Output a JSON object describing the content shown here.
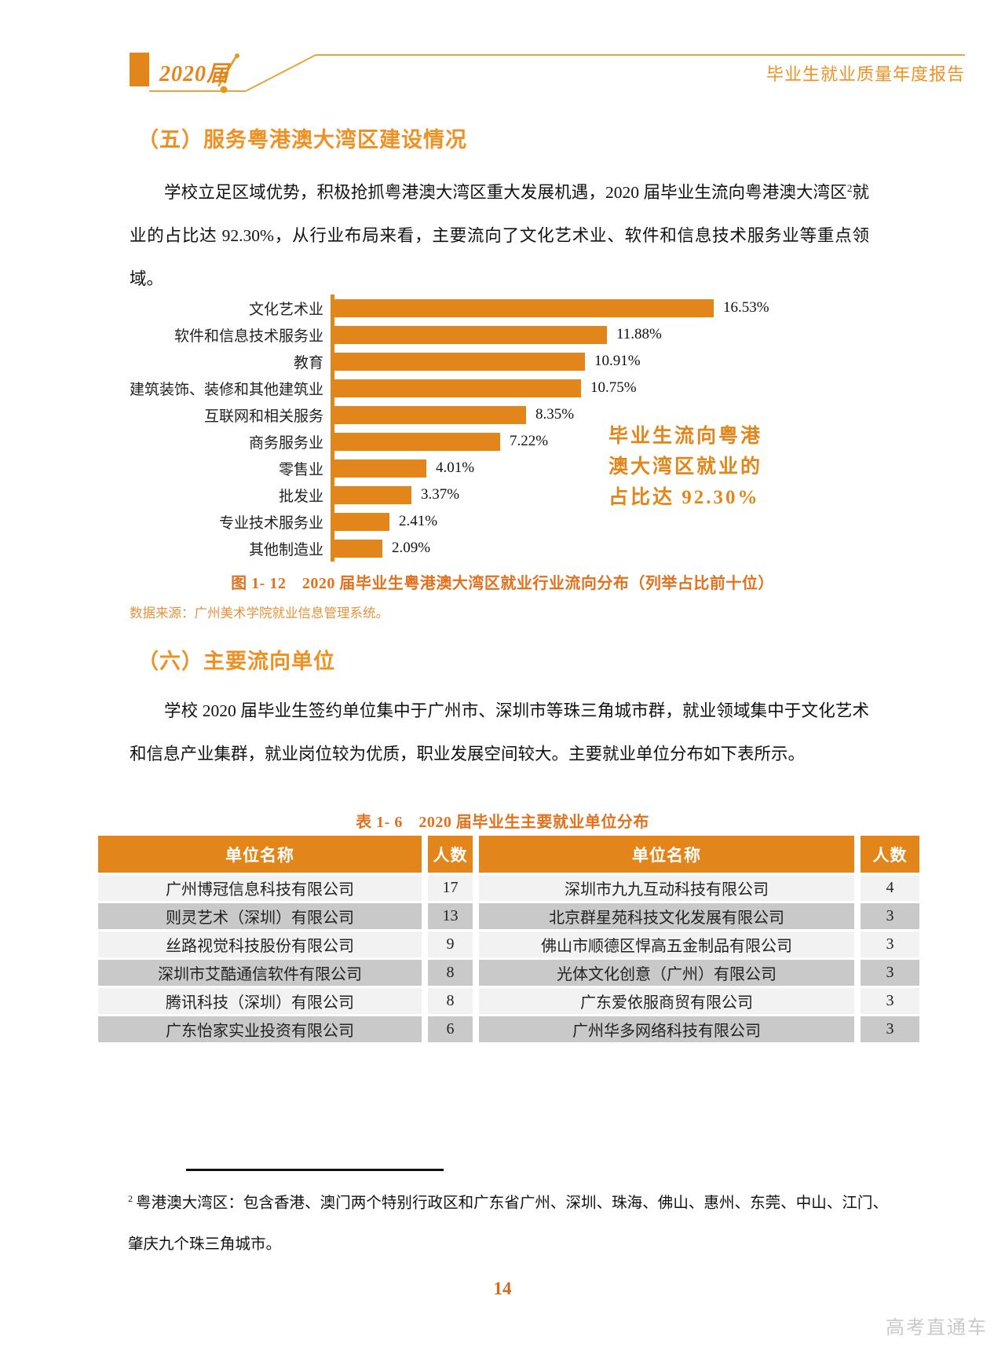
{
  "colors": {
    "accent": "#E2861C",
    "heading": "#EE9125",
    "caption": "#E2711E",
    "source": "#E5933C",
    "row_light": "#F2F2F2",
    "row_dark": "#C9C9C9",
    "page_number_color": "#D2691E",
    "watermark_color": "#C9C9C9"
  },
  "header": {
    "badge": "2020届",
    "title": "毕业生就业质量年度报告"
  },
  "section5": {
    "title": "（五）服务粤港澳大湾区建设情况",
    "para_before_sup": "学校立足区域优势，积极抢抓粤港澳大湾区重大发展机遇，2020 届毕业生流向粤港澳大湾区",
    "para_sup": "2",
    "para_after_sup": "就业的占比达 92.30%，从行业布局来看，主要流向了文化艺术业、软件和信息技术服务业等重点领域。"
  },
  "chart_data": {
    "type": "bar",
    "orientation": "horizontal",
    "title": "图 1- 12　2020 届毕业生粤港澳大湾区就业行业流向分布（列举占比前十位）",
    "categories": [
      "文化艺术业",
      "软件和信息技术服务业",
      "教育",
      "建筑装饰、装修和其他建筑业",
      "互联网和相关服务",
      "商务服务业",
      "零售业",
      "批发业",
      "专业技术服务业",
      "其他制造业"
    ],
    "values": [
      16.53,
      11.88,
      10.91,
      10.75,
      8.35,
      7.22,
      4.01,
      3.37,
      2.41,
      2.09
    ],
    "value_labels": [
      "16.53%",
      "11.88%",
      "10.91%",
      "10.75%",
      "8.35%",
      "7.22%",
      "4.01%",
      "3.37%",
      "2.41%",
      "2.09%"
    ],
    "xlim": [
      0,
      18
    ],
    "grid": false,
    "legend": "none",
    "bar_color": "#E2861C",
    "annotation_lines": [
      "毕业生流向粤港",
      "澳大湾区就业的",
      "占比达 92.30%"
    ],
    "annotation_full": "毕业生流向粤港澳大湾区就业的占比达 92.30%",
    "source": "数据来源：广州美术学院就业信息管理系统。"
  },
  "section6": {
    "title": "（六）主要流向单位",
    "paragraph": "学校 2020 届毕业生签约单位集中于广州市、深圳市等珠三角城市群，就业领域集中于文化艺术和信息产业集群，就业岗位较为优质，职业发展空间较大。主要就业单位分布如下表所示。"
  },
  "table": {
    "caption": "表 1- 6　2020 届毕业生主要就业单位分布",
    "headers": [
      "单位名称",
      "人数",
      "单位名称",
      "人数"
    ],
    "rows": [
      [
        "广州博冠信息科技有限公司",
        "17",
        "深圳市九九互动科技有限公司",
        "4"
      ],
      [
        "则灵艺术（深圳）有限公司",
        "13",
        "北京群星苑科技文化发展有限公司",
        "3"
      ],
      [
        "丝路视觉科技股份有限公司",
        "9",
        "佛山市顺德区悍高五金制品有限公司",
        "3"
      ],
      [
        "深圳市艾酷通信软件有限公司",
        "8",
        "光体文化创意（广州）有限公司",
        "3"
      ],
      [
        "腾讯科技（深圳）有限公司",
        "8",
        "广东爱依服商贸有限公司",
        "3"
      ],
      [
        "广东怡家实业投资有限公司",
        "6",
        "广州华多网络科技有限公司",
        "3"
      ]
    ]
  },
  "footnote": {
    "sup": "2",
    "text": "粤港澳大湾区：包含香港、澳门两个特别行政区和广东省广州、深圳、珠海、佛山、惠州、东莞、中山、江门、肇庆九个珠三角城市。"
  },
  "page_number": "14",
  "watermark": "高考直通车"
}
